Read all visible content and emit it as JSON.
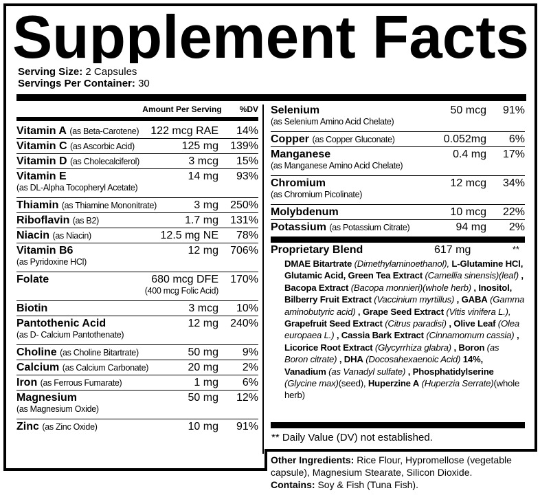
{
  "title": "Supplement Facts",
  "serving": {
    "size_label": "Serving Size:",
    "size_value": "2 Capsules",
    "per_container_label": "Servings Per Container:",
    "per_container_value": "30"
  },
  "headers": {
    "amount": "Amount Per Serving",
    "dv": "%DV"
  },
  "left_rows": [
    {
      "name": "Vitamin A",
      "source": "(as Beta-Carotene)",
      "amount": "122 mcg RAE",
      "dv": "14%",
      "lines": 1
    },
    {
      "name": "Vitamin C",
      "source": "(as Ascorbic Acid)",
      "amount": "125 mg",
      "dv": "139%",
      "lines": 1
    },
    {
      "name": "Vitamin D",
      "source": "(as Cholecalciferol)",
      "amount": "3 mcg",
      "dv": "15%",
      "lines": 1
    },
    {
      "name": "Vitamin E",
      "sub": "(as DL-Alpha Tocopheryl Acetate)",
      "amount": "14 mg",
      "dv": "93%",
      "lines": 2
    },
    {
      "name": "Thiamin",
      "source": "(as Thiamine Mononitrate)",
      "amount": "3 mg",
      "dv": "250%",
      "lines": 1
    },
    {
      "name": "Riboflavin",
      "source": "(as B2)",
      "amount": "1.7 mg",
      "dv": "131%",
      "lines": 1
    },
    {
      "name": "Niacin",
      "source": "(as Niacin)",
      "amount": "12.5 mg NE",
      "dv": "78%",
      "lines": 1
    },
    {
      "name": "Vitamin B6",
      "sub": "(as Pyridoxine HCl)",
      "amount": "12 mg",
      "dv": "706%",
      "lines": 2
    },
    {
      "name": "Folate",
      "amount": "680 mcg DFE",
      "amount_sub": "(400 mcg Folic Acid)",
      "dv": "170%",
      "lines": 2
    },
    {
      "name": "Biotin",
      "amount": "3 mcg",
      "dv": "10%",
      "lines": 1
    },
    {
      "name": "Pantothenic Acid",
      "sub": "(as D- Calcium Pantothenate)",
      "amount": "12 mg",
      "dv": "240%",
      "lines": 2
    },
    {
      "name": "Choline",
      "source": "(as Choline Bitartrate)",
      "amount": "50 mg",
      "dv": "9%",
      "lines": 1
    },
    {
      "name": "Calcium",
      "source": "(as Calcium Carbonate)",
      "amount": "20 mg",
      "dv": "2%",
      "lines": 1
    },
    {
      "name": "Iron",
      "source": "(as Ferrous Fumarate)",
      "amount": "1 mg",
      "dv": "6%",
      "lines": 1
    },
    {
      "name": "Magnesium",
      "sub": "(as Magnesium Oxide)",
      "amount": "50 mg",
      "dv": "12%",
      "lines": 2
    },
    {
      "name": "Zinc",
      "source": "(as Zinc Oxide)",
      "amount": "10 mg",
      "dv": "91%",
      "lines": 1
    }
  ],
  "right_rows": [
    {
      "name": "Selenium",
      "sub": "(as Selenium Amino Acid Chelate)",
      "amount": "50 mcg",
      "dv": "91%",
      "lines": 2
    },
    {
      "name": "Copper",
      "source": "(as Copper Gluconate)",
      "amount": "0.052mg",
      "dv": "6%",
      "lines": 1
    },
    {
      "name": "Manganese",
      "sub": "(as Manganese Amino Acid Chelate)",
      "amount": "0.4 mg",
      "dv": "17%",
      "lines": 2
    },
    {
      "name": "Chromium",
      "sub": "(as Chromium Picolinate)",
      "amount": "12 mcg",
      "dv": "34%",
      "lines": 2
    },
    {
      "name": "Molybdenum",
      "amount": "10 mcg",
      "dv": "22%",
      "lines": 1
    },
    {
      "name": "Potassium",
      "source": "(as Potassium Citrate)",
      "amount": "94 mg",
      "dv": "2%",
      "lines": 1
    }
  ],
  "blend": {
    "name": "Proprietary Blend",
    "amount": "617 mg",
    "dv": "**",
    "ingredients": [
      {
        "b": "DMAE Bitartrate",
        "i": "(Dimethylaminoethanol),"
      },
      {
        "b": "L-Glutamine HCl, Glutamic Acid, Green Tea Extract",
        "i": "(Camellia sinensis)(leaf)"
      },
      {
        "b": ", Bacopa Extract",
        "i": "(Bacopa monnieri)(whole herb)"
      },
      {
        "b": ", Inositol, Bilberry Fruit Extract",
        "i": "(Vaccinium myrtillus)"
      },
      {
        "b": ", GABA",
        "i": "(Gamma aminobutyric acid)"
      },
      {
        "b": ", Grape Seed Extract",
        "i": "(Vitis vinifera L.),"
      },
      {
        "b": "Grapefruit Seed Extract",
        "i": "(Citrus paradisi)"
      },
      {
        "b": ", Olive Leaf",
        "i": "(Olea europaea L.)"
      },
      {
        "b": ", Cassia Bark Extract",
        "i": "(Cinnamomum cassia)"
      },
      {
        "b": ", Licorice Root Extract",
        "i": "(Glycyrrhiza glabra)"
      },
      {
        "b": ", Boron",
        "i": "(as Boron citrate)"
      },
      {
        "b": ", DHA",
        "i": "(Docosahexaenoic Acid)"
      },
      {
        "b": "14%, Vanadium",
        "i": "(as Vanadyl sulfate)"
      },
      {
        "b": ", Phosphatidylserine",
        "i": "(Glycine max)",
        "n": "(seed),"
      },
      {
        "b": "Huperzine A",
        "i": "(Huperzia Serrate)",
        "n": "(whole herb)"
      }
    ]
  },
  "footnote": "** Daily Value (DV) not established.",
  "other": {
    "label": "Other Ingredients:",
    "value": "Rice Flour, Hypromellose (vegetable capsule), Magnesium Stearate, Silicon Dioxide.",
    "contains_label": "Contains:",
    "contains_value": "Soy & Fish (Tuna Fish)."
  }
}
